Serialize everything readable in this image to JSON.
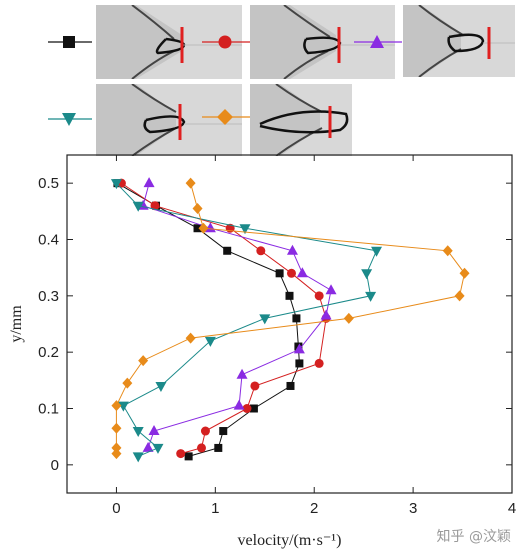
{
  "chart_data": {
    "type": "line",
    "title": "",
    "xlabel": "velocity/(m·s⁻¹)",
    "ylabel": "y/mm",
    "xlim": [
      -0.5,
      4
    ],
    "ylim": [
      -0.05,
      0.55
    ],
    "xticks": [
      0,
      1,
      2,
      3,
      4
    ],
    "yticks": [
      0,
      0.1,
      0.2,
      0.3,
      0.4,
      0.5
    ],
    "ytick_labels": [
      "0",
      "0.1",
      "0.2",
      "0.3",
      "0.4",
      "0.5"
    ],
    "grid": false,
    "legend_placement": "top, with image thumbnails",
    "series": [
      {
        "marker": "square",
        "color": "#111111",
        "x": [
          0.01,
          0.4,
          0.82,
          1.12,
          1.65,
          1.75,
          1.82,
          1.84,
          1.85,
          1.76,
          1.39,
          1.08,
          1.03,
          0.73
        ],
        "y": [
          0.5,
          0.46,
          0.42,
          0.38,
          0.34,
          0.3,
          0.26,
          0.21,
          0.18,
          0.14,
          0.1,
          0.06,
          0.03,
          0.015
        ]
      },
      {
        "marker": "circle",
        "color": "#d42020",
        "x": [
          0.05,
          0.39,
          1.15,
          1.46,
          1.77,
          2.05,
          2.12,
          2.05,
          1.4,
          1.32,
          0.9,
          0.86,
          0.65
        ],
        "y": [
          0.5,
          0.46,
          0.42,
          0.38,
          0.34,
          0.3,
          0.26,
          0.18,
          0.14,
          0.1,
          0.06,
          0.03,
          0.02
        ]
      },
      {
        "marker": "triangle-up",
        "color": "#8a2be2",
        "x": [
          0.33,
          0.27,
          0.95,
          1.78,
          1.88,
          2.17,
          2.12,
          1.85,
          1.27,
          1.24,
          0.38,
          0.32
        ],
        "y": [
          0.5,
          0.46,
          0.42,
          0.38,
          0.34,
          0.31,
          0.265,
          0.205,
          0.16,
          0.105,
          0.06,
          0.03
        ]
      },
      {
        "marker": "triangle-down",
        "color": "#1b8a8a",
        "x": [
          0.0,
          0.22,
          1.3,
          2.63,
          2.53,
          2.57,
          1.5,
          0.95,
          0.45,
          0.07,
          0.22,
          0.42,
          0.22
        ],
        "y": [
          0.5,
          0.46,
          0.42,
          0.38,
          0.34,
          0.3,
          0.26,
          0.22,
          0.14,
          0.105,
          0.06,
          0.03,
          0.015
        ]
      },
      {
        "marker": "diamond",
        "color": "#e88b1a",
        "x": [
          0.75,
          0.82,
          0.88,
          3.35,
          3.52,
          3.47,
          2.35,
          0.75,
          0.27,
          0.11,
          0.0,
          0.0,
          0.0,
          0.0
        ],
        "y": [
          0.5,
          0.455,
          0.42,
          0.38,
          0.34,
          0.3,
          0.26,
          0.225,
          0.185,
          0.145,
          0.105,
          0.065,
          0.03,
          0.02
        ]
      }
    ]
  },
  "watermark": "知乎 @汶颖"
}
